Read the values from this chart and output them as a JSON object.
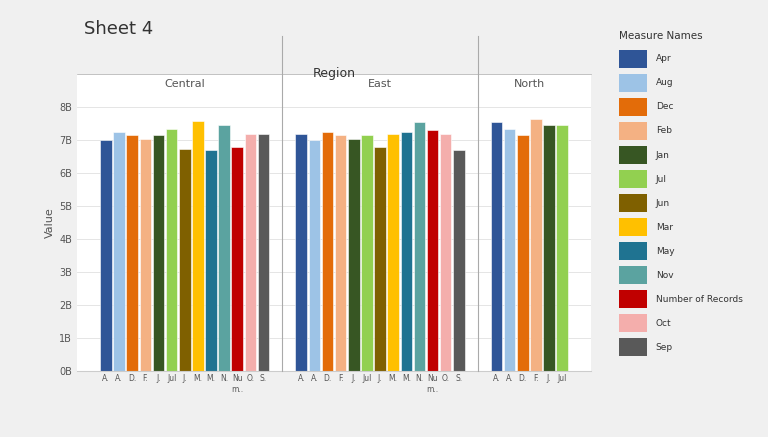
{
  "title": "Sheet 4",
  "regions": [
    "Central",
    "East",
    "North"
  ],
  "measures": [
    "Apr",
    "Aug",
    "Dec",
    "Feb",
    "Jan",
    "Jul",
    "Jun",
    "Mar",
    "May",
    "Nov",
    "Number of\nRecords",
    "Oct",
    "Sep"
  ],
  "measure_labels_short": [
    "A.",
    "A.",
    "D.",
    "F.",
    "J.",
    "Jul",
    "J.",
    "M.",
    "M.",
    "N.",
    "Nu\nm..",
    "O.",
    "S."
  ],
  "colors": {
    "Apr": "#2f5597",
    "Aug": "#9dc3e6",
    "Dec": "#e36c09",
    "Feb": "#f4b183",
    "Jan": "#375623",
    "Jul": "#92d050",
    "Jun": "#7f6000",
    "Mar": "#ffc000",
    "May": "#1f7391",
    "Nov": "#5ba3a0",
    "Number of\nRecords": "#c00000",
    "Oct": "#f4aeac",
    "Sep": "#595959"
  },
  "legend_names": [
    "Apr",
    "Aug",
    "Dec",
    "Feb",
    "Jan",
    "Jul",
    "Jun",
    "Mar",
    "May",
    "Nov",
    "Number of Records",
    "Oct",
    "Sep"
  ],
  "values": {
    "Central": {
      "Apr": 7.0,
      "Aug": 7.25,
      "Dec": 7.15,
      "Feb": 7.05,
      "Jan": 7.15,
      "Jul": 7.35,
      "Jun": 6.75,
      "Mar": 7.6,
      "May": 6.7,
      "Nov": 7.45,
      "Number of\nRecords": 6.8,
      "Oct": 7.2,
      "Sep": 7.2
    },
    "East": {
      "Apr": 7.2,
      "Aug": 7.0,
      "Dec": 7.25,
      "Feb": 7.15,
      "Jan": 7.05,
      "Jul": 7.15,
      "Jun": 6.8,
      "Mar": 7.2,
      "May": 7.25,
      "Nov": 7.55,
      "Number of\nRecords": 7.3,
      "Oct": 7.2,
      "Sep": 6.7
    },
    "North": {
      "Apr": 7.55,
      "Aug": 7.35,
      "Dec": 7.15,
      "Feb": 7.65,
      "Jan": 7.45,
      "Jul": 7.45,
      "Jun": 0,
      "Mar": 0,
      "May": 0,
      "Nov": 0,
      "Number of\nRecords": 0,
      "Oct": 0,
      "Sep": 0
    }
  },
  "ylim": [
    0,
    9
  ],
  "yticks": [
    0,
    1,
    2,
    3,
    4,
    5,
    6,
    7,
    8
  ],
  "ytick_labels": [
    "0B",
    "1B",
    "2B",
    "3B",
    "4B",
    "5B",
    "6B",
    "7B",
    "8B"
  ],
  "bg_color": "#ffffff",
  "outer_bg": "#f0f0f0",
  "grid_color": "#e0e0e0"
}
